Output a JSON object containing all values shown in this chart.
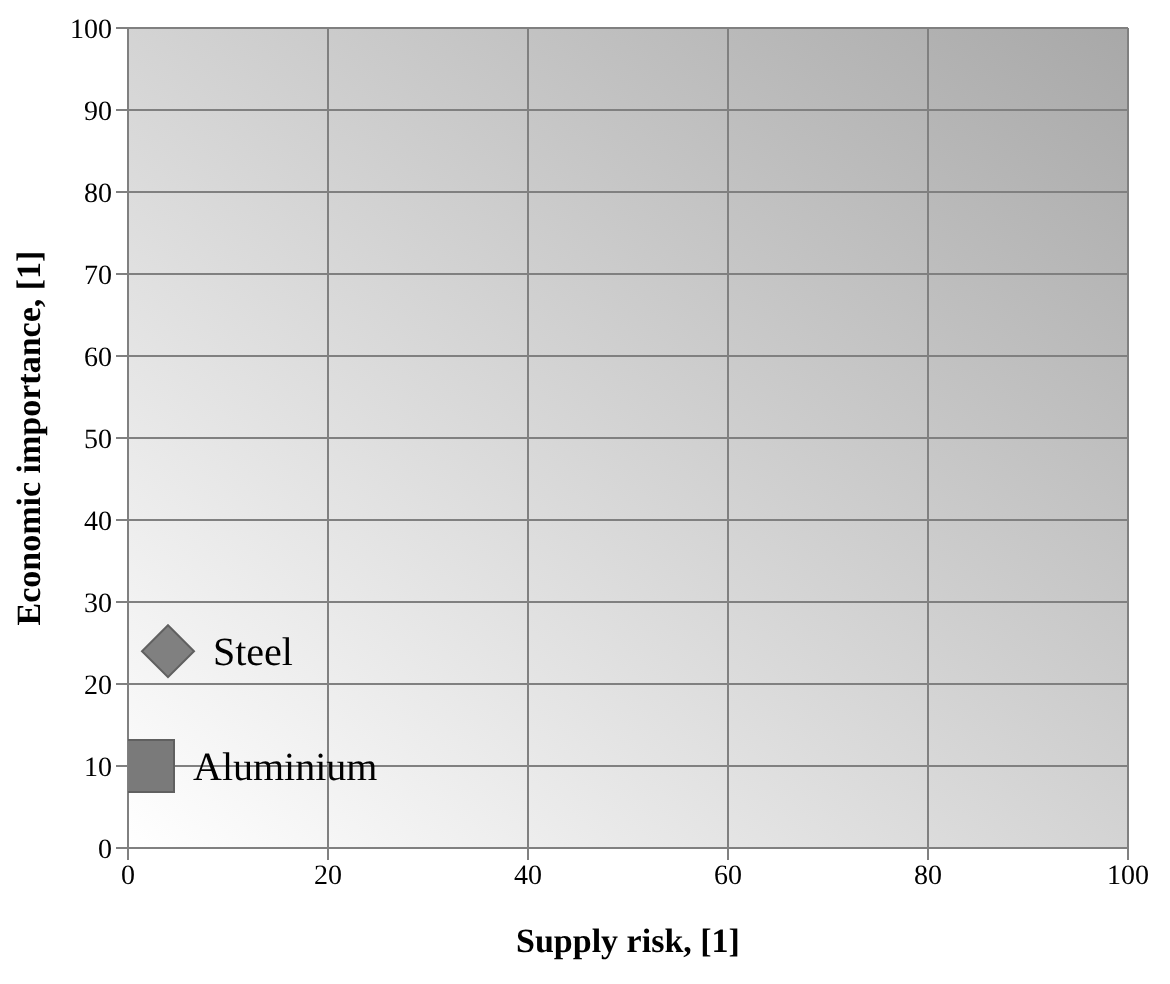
{
  "chart_data": {
    "type": "scatter",
    "xlabel": "Supply risk, [1]",
    "ylabel": "Economic importance, [1]",
    "xlim": [
      0,
      100
    ],
    "xticks": [
      0,
      20,
      40,
      60,
      80,
      100
    ],
    "ylim": [
      0,
      100
    ],
    "yticks": [
      0,
      10,
      20,
      30,
      40,
      50,
      60,
      70,
      80,
      90,
      100
    ],
    "grid": true,
    "legend": false,
    "series": [
      {
        "name": "Steel",
        "color": "#808080",
        "marker": "diamond",
        "x": [
          4
        ],
        "values": [
          24
        ]
      },
      {
        "name": "Aluminium",
        "color": "#7a7a7a",
        "marker": "square",
        "x": [
          2
        ],
        "values": [
          10
        ]
      }
    ]
  }
}
